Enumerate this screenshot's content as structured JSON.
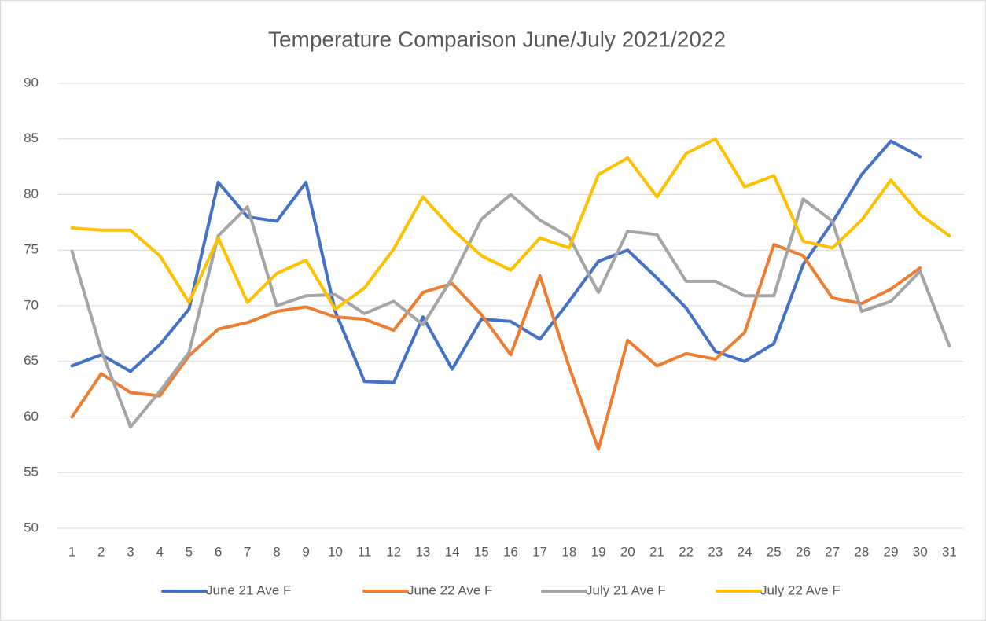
{
  "chart_data": {
    "type": "line",
    "title": "Temperature Comparison June/July 2021/2022",
    "categories": [
      "1",
      "2",
      "3",
      "4",
      "5",
      "6",
      "7",
      "8",
      "9",
      "10",
      "11",
      "12",
      "13",
      "14",
      "15",
      "16",
      "17",
      "18",
      "19",
      "20",
      "21",
      "22",
      "23",
      "24",
      "25",
      "26",
      "27",
      "28",
      "29",
      "30",
      "31"
    ],
    "ylim": [
      50,
      90
    ],
    "yticks": [
      50,
      55,
      60,
      65,
      70,
      75,
      80,
      85,
      90
    ],
    "grid": true,
    "legend": "bottom",
    "series": [
      {
        "name": "June 21 Ave F",
        "color": "#4472c4",
        "values": [
          64.6,
          65.6,
          64.1,
          66.5,
          69.7,
          81.1,
          78,
          77.6,
          81.1,
          69.5,
          63.2,
          63.1,
          69,
          64.3,
          68.8,
          68.6,
          67,
          70.4,
          74,
          75,
          72.5,
          69.8,
          65.9,
          65,
          66.6,
          73.7,
          77.5,
          81.8,
          84.8,
          83.4,
          null
        ]
      },
      {
        "name": "June 22 Ave F",
        "color": "#ed7d31",
        "values": [
          60,
          63.9,
          62.2,
          61.9,
          65.5,
          67.9,
          68.5,
          69.5,
          69.9,
          69,
          68.8,
          67.8,
          71.2,
          72,
          69.2,
          65.6,
          72.7,
          64.5,
          57.1,
          66.9,
          64.6,
          65.7,
          65.2,
          67.6,
          75.5,
          74.5,
          70.7,
          70.2,
          71.5,
          73.4,
          null
        ]
      },
      {
        "name": "July 21 Ave F",
        "color": "#a5a5a5",
        "values": [
          74.9,
          66,
          59.1,
          62.3,
          65.8,
          76.3,
          78.9,
          70,
          70.9,
          71,
          69.3,
          70.4,
          68.3,
          72.5,
          77.8,
          80,
          77.7,
          76.2,
          71.2,
          76.7,
          76.4,
          72.2,
          72.2,
          70.9,
          70.9,
          79.6,
          77.6,
          69.5,
          70.4,
          73.1,
          66.4
        ]
      },
      {
        "name": "July 22 Ave F",
        "color": "#ffc000",
        "values": [
          77,
          76.8,
          76.8,
          74.5,
          70.3,
          76.1,
          70.3,
          72.9,
          74.1,
          69.7,
          71.6,
          75.1,
          79.8,
          76.9,
          74.5,
          73.2,
          76.1,
          75.2,
          81.8,
          83.3,
          79.8,
          83.7,
          85,
          80.7,
          81.7,
          75.8,
          75.2,
          77.7,
          81.3,
          78.2,
          76.3
        ]
      }
    ]
  }
}
